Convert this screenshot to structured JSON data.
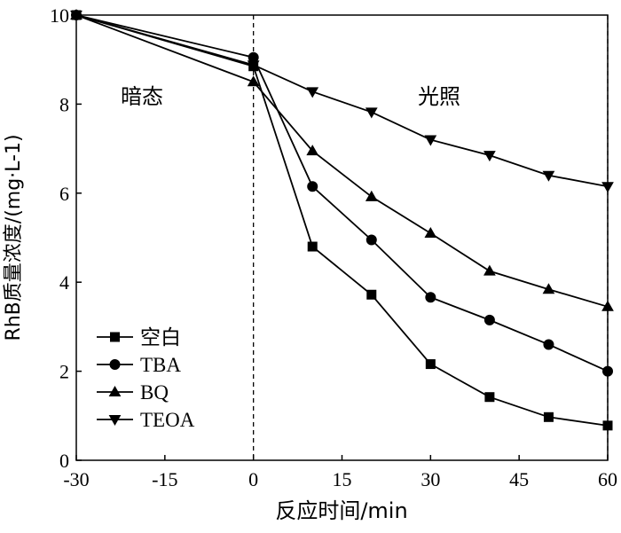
{
  "chart_data": {
    "type": "line",
    "xlabel": "反应时间/min",
    "ylabel": "RhB质量浓度/(mg·L-1)",
    "xlim": [
      -30,
      60
    ],
    "ylim": [
      0,
      10
    ],
    "xticks": [
      -30,
      -15,
      0,
      15,
      30,
      45,
      60
    ],
    "yticks": [
      0,
      2,
      4,
      6,
      8,
      10
    ],
    "xtick_labels": [
      "-30",
      "-15",
      "0",
      "15",
      "30",
      "45",
      "60"
    ],
    "ytick_labels": [
      "0",
      "2",
      "4",
      "6",
      "8",
      "10"
    ],
    "grid": false,
    "legend": "bottom-left",
    "annotations": {
      "dark": "暗态",
      "light": "光照"
    },
    "vlines": [
      0,
      60
    ],
    "series": [
      {
        "name": "空白",
        "marker": "square",
        "x": [
          -30,
          0,
          10,
          20,
          30,
          40,
          50,
          60
        ],
        "y": [
          10.0,
          8.85,
          4.8,
          3.72,
          2.16,
          1.42,
          0.97,
          0.78
        ]
      },
      {
        "name": "TBA",
        "marker": "circle",
        "x": [
          -30,
          0,
          10,
          20,
          30,
          40,
          50,
          60
        ],
        "y": [
          10.0,
          9.05,
          6.15,
          4.95,
          3.66,
          3.15,
          2.6,
          2.0
        ]
      },
      {
        "name": "BQ",
        "marker": "triangle-up",
        "x": [
          -30,
          0,
          10,
          20,
          30,
          40,
          50,
          60
        ],
        "y": [
          10.0,
          8.5,
          6.95,
          5.92,
          5.1,
          4.25,
          3.84,
          3.45
        ]
      },
      {
        "name": "TEOA",
        "marker": "triangle-down",
        "x": [
          -30,
          0,
          10,
          20,
          30,
          40,
          50,
          60
        ],
        "y": [
          10.0,
          8.88,
          8.28,
          7.82,
          7.2,
          6.85,
          6.4,
          6.15
        ]
      }
    ]
  }
}
